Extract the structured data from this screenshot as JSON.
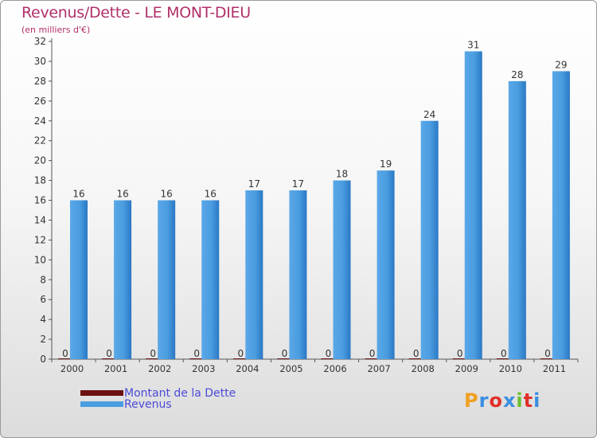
{
  "title": "Revenus/Dette - LE MONT-DIEU",
  "subtitle": "(en milliers d'€)",
  "logo": {
    "letters": [
      "P",
      "r",
      "o",
      "x",
      "i",
      "t",
      "i"
    ],
    "colors": [
      "#f0a020",
      "#3a8ee0",
      "#e0302c",
      "#3a8ee0",
      "#6cbf2c",
      "#e0302c",
      "#3a8ee0"
    ]
  },
  "colors": {
    "dette": "#6b0f0f",
    "revenus": "#4a9de0",
    "revenus_dark": "#2a78c4",
    "title": "#b0306a",
    "legend_text": "#4a4ad8"
  },
  "legend": [
    {
      "label": "Montant de la Dette",
      "color": "#6b0f0f"
    },
    {
      "label": "Revenus",
      "color": "#4a9de0"
    }
  ],
  "chart_data": {
    "type": "bar",
    "categories": [
      "2000",
      "2001",
      "2002",
      "2003",
      "2004",
      "2005",
      "2006",
      "2007",
      "2008",
      "2009",
      "2010",
      "2011"
    ],
    "series": [
      {
        "name": "Montant de la Dette",
        "values": [
          0,
          0,
          0,
          0,
          0,
          0,
          0,
          0,
          0,
          0,
          0,
          0
        ],
        "color": "#6b0f0f"
      },
      {
        "name": "Revenus",
        "values": [
          16,
          16,
          16,
          16,
          17,
          17,
          18,
          19,
          24,
          31,
          28,
          29
        ],
        "color": "#4a9de0"
      }
    ],
    "ylim": [
      0,
      32
    ],
    "yticks": [
      0,
      2,
      4,
      6,
      8,
      10,
      12,
      14,
      16,
      18,
      20,
      22,
      24,
      26,
      28,
      30,
      32
    ],
    "grid": false,
    "legend_position": "bottom-left"
  }
}
